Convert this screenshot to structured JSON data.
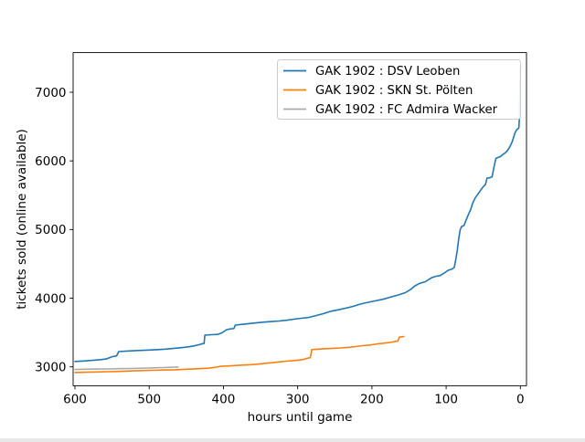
{
  "window": {
    "background": "#ffffff"
  },
  "chart_data": {
    "type": "line",
    "title": "",
    "xlabel": "hours until game",
    "ylabel": "tickets sold (online available)",
    "x_axis": {
      "min": 0,
      "max": 600,
      "inverted": true,
      "ticks": [
        600,
        500,
        400,
        300,
        200,
        100,
        0
      ]
    },
    "y_axis": {
      "ticks": [
        3000,
        4000,
        5000,
        6000,
        7000
      ],
      "approx_lim": [
        2690,
        7590
      ]
    },
    "grid": false,
    "legend": {
      "position": "upper right",
      "border_color": "#cccccc",
      "background": "#ffffff"
    },
    "series": [
      {
        "name": "GAK 1902 : DSV Leoben",
        "color": "#1f77b4",
        "points": [
          [
            600,
            3078
          ],
          [
            588,
            3085
          ],
          [
            576,
            3095
          ],
          [
            565,
            3105
          ],
          [
            558,
            3115
          ],
          [
            550,
            3148
          ],
          [
            544,
            3160
          ],
          [
            541,
            3222
          ],
          [
            530,
            3230
          ],
          [
            515,
            3238
          ],
          [
            500,
            3245
          ],
          [
            488,
            3252
          ],
          [
            478,
            3258
          ],
          [
            468,
            3268
          ],
          [
            458,
            3278
          ],
          [
            448,
            3290
          ],
          [
            440,
            3305
          ],
          [
            433,
            3322
          ],
          [
            428,
            3338
          ],
          [
            426,
            3340
          ],
          [
            425,
            3462
          ],
          [
            416,
            3468
          ],
          [
            408,
            3472
          ],
          [
            402,
            3495
          ],
          [
            396,
            3540
          ],
          [
            391,
            3552
          ],
          [
            386,
            3558
          ],
          [
            384,
            3608
          ],
          [
            375,
            3618
          ],
          [
            365,
            3630
          ],
          [
            355,
            3642
          ],
          [
            345,
            3652
          ],
          [
            335,
            3660
          ],
          [
            325,
            3668
          ],
          [
            315,
            3678
          ],
          [
            305,
            3695
          ],
          [
            295,
            3708
          ],
          [
            285,
            3720
          ],
          [
            275,
            3748
          ],
          [
            265,
            3775
          ],
          [
            255,
            3810
          ],
          [
            245,
            3832
          ],
          [
            235,
            3855
          ],
          [
            225,
            3882
          ],
          [
            215,
            3915
          ],
          [
            205,
            3940
          ],
          [
            195,
            3962
          ],
          [
            185,
            3985
          ],
          [
            175,
            4015
          ],
          [
            165,
            4045
          ],
          [
            155,
            4080
          ],
          [
            148,
            4125
          ],
          [
            142,
            4180
          ],
          [
            136,
            4215
          ],
          [
            128,
            4240
          ],
          [
            120,
            4295
          ],
          [
            114,
            4318
          ],
          [
            108,
            4330
          ],
          [
            102,
            4370
          ],
          [
            97,
            4408
          ],
          [
            92,
            4425
          ],
          [
            89,
            4450
          ],
          [
            87,
            4560
          ],
          [
            85,
            4700
          ],
          [
            83,
            4870
          ],
          [
            81,
            5000
          ],
          [
            79,
            5045
          ],
          [
            76,
            5058
          ],
          [
            73,
            5140
          ],
          [
            70,
            5220
          ],
          [
            67,
            5290
          ],
          [
            64,
            5390
          ],
          [
            61,
            5460
          ],
          [
            57,
            5520
          ],
          [
            53,
            5580
          ],
          [
            50,
            5625
          ],
          [
            47,
            5655
          ],
          [
            45,
            5748
          ],
          [
            41,
            5755
          ],
          [
            38,
            5770
          ],
          [
            36,
            5890
          ],
          [
            33,
            6035
          ],
          [
            30,
            6050
          ],
          [
            27,
            6062
          ],
          [
            24,
            6090
          ],
          [
            21,
            6112
          ],
          [
            18,
            6142
          ],
          [
            15,
            6190
          ],
          [
            13,
            6230
          ],
          [
            11,
            6280
          ],
          [
            9,
            6350
          ],
          [
            7,
            6415
          ],
          [
            5,
            6450
          ],
          [
            4,
            6462
          ],
          [
            3,
            6470
          ],
          [
            2,
            6482
          ],
          [
            1.5,
            6600
          ],
          [
            1,
            6900
          ],
          [
            0.5,
            7150
          ],
          [
            0,
            7370
          ]
        ]
      },
      {
        "name": "GAK 1902 : SKN St. Pölten",
        "color": "#ff7f0e",
        "points": [
          [
            600,
            2918
          ],
          [
            585,
            2922
          ],
          [
            570,
            2926
          ],
          [
            555,
            2930
          ],
          [
            540,
            2934
          ],
          [
            525,
            2940
          ],
          [
            510,
            2945
          ],
          [
            495,
            2950
          ],
          [
            480,
            2954
          ],
          [
            465,
            2958
          ],
          [
            450,
            2965
          ],
          [
            435,
            2972
          ],
          [
            420,
            2980
          ],
          [
            410,
            2995
          ],
          [
            404,
            3008
          ],
          [
            395,
            3012
          ],
          [
            385,
            3018
          ],
          [
            375,
            3025
          ],
          [
            365,
            3030
          ],
          [
            355,
            3038
          ],
          [
            345,
            3050
          ],
          [
            335,
            3060
          ],
          [
            325,
            3072
          ],
          [
            315,
            3082
          ],
          [
            305,
            3092
          ],
          [
            298,
            3098
          ],
          [
            292,
            3108
          ],
          [
            287,
            3125
          ],
          [
            283,
            3135
          ],
          [
            281,
            3252
          ],
          [
            272,
            3258
          ],
          [
            262,
            3265
          ],
          [
            252,
            3270
          ],
          [
            242,
            3276
          ],
          [
            232,
            3284
          ],
          [
            222,
            3295
          ],
          [
            212,
            3308
          ],
          [
            202,
            3318
          ],
          [
            196,
            3328
          ],
          [
            190,
            3338
          ],
          [
            184,
            3345
          ],
          [
            178,
            3352
          ],
          [
            172,
            3362
          ],
          [
            168,
            3372
          ],
          [
            165,
            3376
          ],
          [
            163,
            3432
          ],
          [
            160,
            3438
          ],
          [
            157,
            3440
          ]
        ]
      },
      {
        "name": "GAK 1902 : FC Admira Wacker",
        "color": "#aaaaaa",
        "points": [
          [
            600,
            2962
          ],
          [
            585,
            2965
          ],
          [
            570,
            2968
          ],
          [
            555,
            2970
          ],
          [
            540,
            2973
          ],
          [
            525,
            2976
          ],
          [
            510,
            2980
          ],
          [
            500,
            2983
          ],
          [
            490,
            2987
          ],
          [
            480,
            2990
          ],
          [
            472,
            2993
          ],
          [
            466,
            2996
          ],
          [
            461,
            2998
          ]
        ]
      }
    ]
  }
}
